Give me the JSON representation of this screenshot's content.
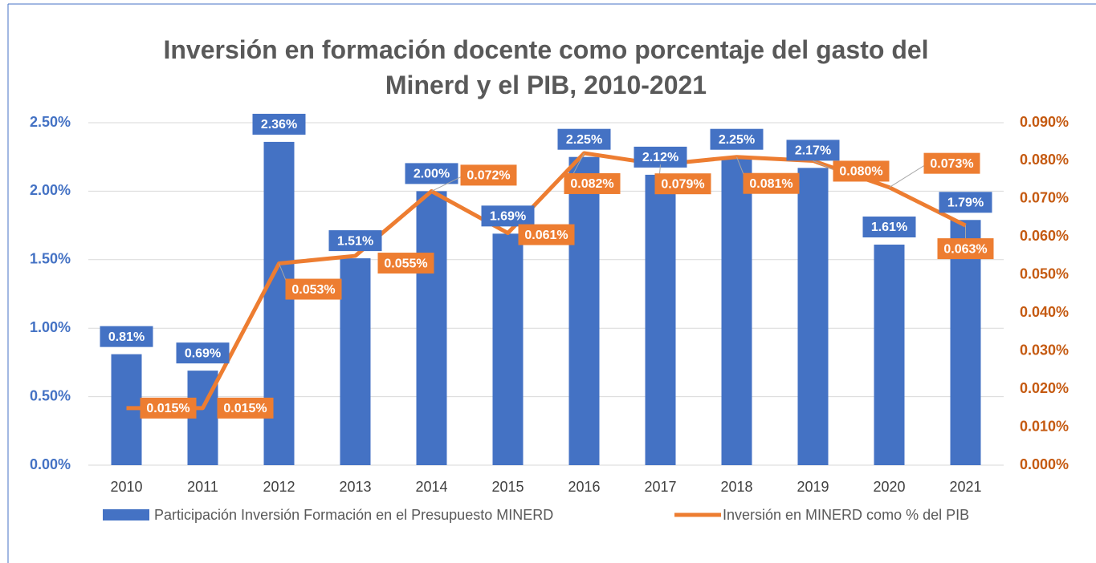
{
  "chart_data": {
    "type": "bar_line",
    "title": "Inversión en formación docente como porcentaje del gasto del Minerd y el PIB, 2010-2021",
    "categories": [
      "2010",
      "2011",
      "2012",
      "2013",
      "2014",
      "2015",
      "2016",
      "2017",
      "2018",
      "2019",
      "2020",
      "2021"
    ],
    "series": [
      {
        "name": "Participación Inversión Formación en el Presupuesto MINERD",
        "type": "bar",
        "color": "#4472c4",
        "values": [
          0.81,
          0.69,
          2.36,
          1.51,
          2.0,
          1.69,
          2.25,
          2.12,
          2.25,
          2.17,
          1.61,
          1.79
        ],
        "value_labels": [
          "0.81%",
          "0.69%",
          "2.36%",
          "1.51%",
          "2.00%",
          "1.69%",
          "2.25%",
          "2.12%",
          "2.25%",
          "2.17%",
          "1.61%",
          "1.79%"
        ]
      },
      {
        "name": "Inversión en MINERD como % del PIB",
        "type": "line",
        "axis": "y2",
        "color": "#ed7d31",
        "values": [
          0.015,
          0.015,
          0.053,
          0.055,
          0.072,
          0.061,
          0.082,
          0.079,
          0.081,
          0.08,
          0.073,
          0.063
        ],
        "value_labels": [
          "0.015%",
          "0.015%",
          "0.053%",
          "0.055%",
          "0.072%",
          "0.061%",
          "0.082%",
          "0.079%",
          "0.081%",
          "0.080%",
          "0.073%",
          "0.063%"
        ]
      }
    ],
    "ylim": [
      0,
      2.5
    ],
    "yticks": [
      {
        "value": 0,
        "label": "0.00%"
      },
      {
        "value": 0.5,
        "label": "0.50%"
      },
      {
        "value": 1,
        "label": "1.00%"
      },
      {
        "value": 1.5,
        "label": "1.50%"
      },
      {
        "value": 2,
        "label": "2.00%"
      },
      {
        "value": 2.5,
        "label": "2.50%"
      }
    ],
    "y2lim": [
      0,
      0.09
    ],
    "y2ticks": [
      {
        "value": 0,
        "label": "0.000%"
      },
      {
        "value": 0.01,
        "label": "0.010%"
      },
      {
        "value": 0.02,
        "label": "0.020%"
      },
      {
        "value": 0.03,
        "label": "0.030%"
      },
      {
        "value": 0.04,
        "label": "0.040%"
      },
      {
        "value": 0.05,
        "label": "0.050%"
      },
      {
        "value": 0.06,
        "label": "0.060%"
      },
      {
        "value": 0.07,
        "label": "0.070%"
      },
      {
        "value": 0.08,
        "label": "0.080%"
      },
      {
        "value": 0.09,
        "label": "0.090%"
      }
    ],
    "grid": true,
    "legend": "bottom"
  }
}
